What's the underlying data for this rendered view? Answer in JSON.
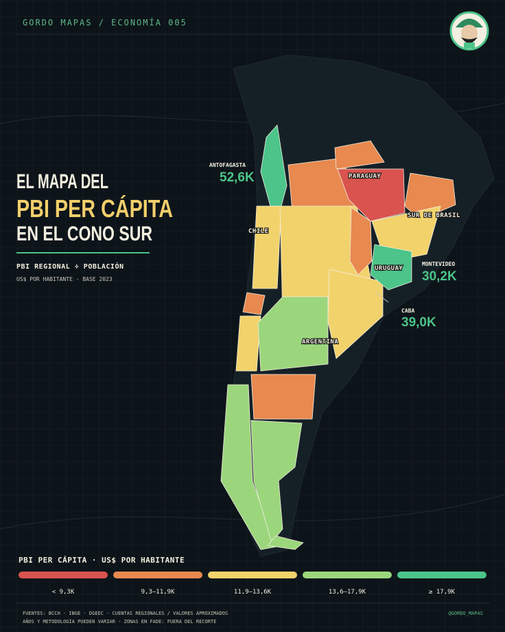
{
  "header": {
    "brand": "GORDO MAPAS / ECONOMÍA 005"
  },
  "title": {
    "line1": "EL MAPA DEL",
    "line2": "PBI PER CÁPITA",
    "line3": "EN EL CONO SUR"
  },
  "subtitle": {
    "formula": "PBI REGIONAL ÷ POBLACIÓN",
    "note": "US$ POR HABITANTE · BASE 2023"
  },
  "map": {
    "labels": [
      "PARAGUAY",
      "CHILE",
      "SUR DE BRASIL",
      "URUGUAY",
      "ARGENTINA"
    ],
    "callouts": [
      {
        "name": "ANTOFAGASTA",
        "value": "52,6K"
      },
      {
        "name": "MONTEVIDEO",
        "value": "30,2K"
      },
      {
        "name": "CABA",
        "value": "39,0K"
      }
    ]
  },
  "legend": {
    "title": "PBI PER CÁPITA · US$ POR HABITANTE",
    "classes": [
      {
        "label": "< 9,3K",
        "color": "#d9534f"
      },
      {
        "label": "9,3–11,9K",
        "color": "#e8894f"
      },
      {
        "label": "11,9–13,6K",
        "color": "#f2d26b"
      },
      {
        "label": "13,6–17,9K",
        "color": "#9bd67c"
      },
      {
        "label": "≥ 17,9K",
        "color": "#4cc48a"
      }
    ]
  },
  "footer": {
    "sources": "FUENTES: BCCH · IBGE · DGEEC · CUENTAS REGIONALES / VALORES APROXIMADOS",
    "notes": "AÑOS Y METODOLOGÍA PUEDEN VARIAR · ZONAS EN FADE: FUERA DEL RECORTE",
    "handle": "@GORDO_MAPAS"
  }
}
